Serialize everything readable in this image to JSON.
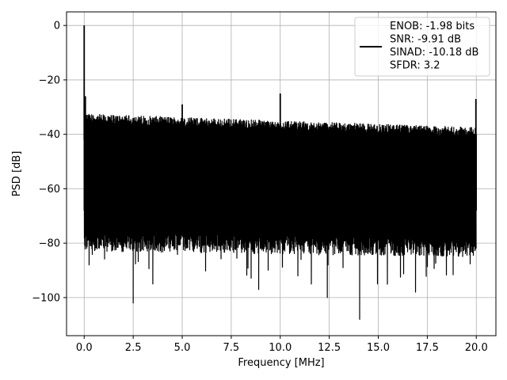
{
  "chart_data": {
    "type": "line",
    "title": "",
    "xlabel": "Frequency [MHz]",
    "ylabel": "PSD [dB]",
    "xlim": [
      -0.9,
      21.0
    ],
    "ylim": [
      -114,
      5
    ],
    "x_ticks": [
      0.0,
      2.5,
      5.0,
      7.5,
      10.0,
      12.5,
      15.0,
      17.5,
      20.0
    ],
    "x_tick_labels": [
      "0.0",
      "2.5",
      "5.0",
      "7.5",
      "10.0",
      "12.5",
      "15.0",
      "17.5",
      "20.0"
    ],
    "y_ticks": [
      0,
      -20,
      -40,
      -60,
      -80,
      -100
    ],
    "y_tick_labels": [
      "0",
      "−20",
      "−40",
      "−60",
      "−80",
      "−100"
    ],
    "grid": true,
    "legend_position": "top-right",
    "legend_lines": [
      "ENOB: -1.98 bits",
      "SNR: -9.91 dB",
      "SINAD: -10.18 dB",
      "SFDR: 3.2"
    ],
    "series": [
      {
        "color": "#000000",
        "noise": {
          "x_start": 0.0,
          "x_end": 20.0,
          "upper_start": -35,
          "upper_end": -40,
          "lower_typical_start": -76,
          "lower_typical_end": -78,
          "deep_minima": [
            {
              "x": 2.5,
              "y": -102
            },
            {
              "x": 3.5,
              "y": -95
            },
            {
              "x": 8.9,
              "y": -97
            },
            {
              "x": 12.4,
              "y": -100
            },
            {
              "x": 14.05,
              "y": -108
            },
            {
              "x": 16.9,
              "y": -98
            },
            {
              "x": 0.25,
              "y": -88
            }
          ]
        },
        "peaks": [
          {
            "x": 0.0,
            "y": 0
          },
          {
            "x": 0.06,
            "y": -26
          },
          {
            "x": 5.0,
            "y": -29
          },
          {
            "x": 10.0,
            "y": -25
          },
          {
            "x": 12.3,
            "y": -37
          },
          {
            "x": 19.98,
            "y": -27
          }
        ]
      }
    ]
  }
}
